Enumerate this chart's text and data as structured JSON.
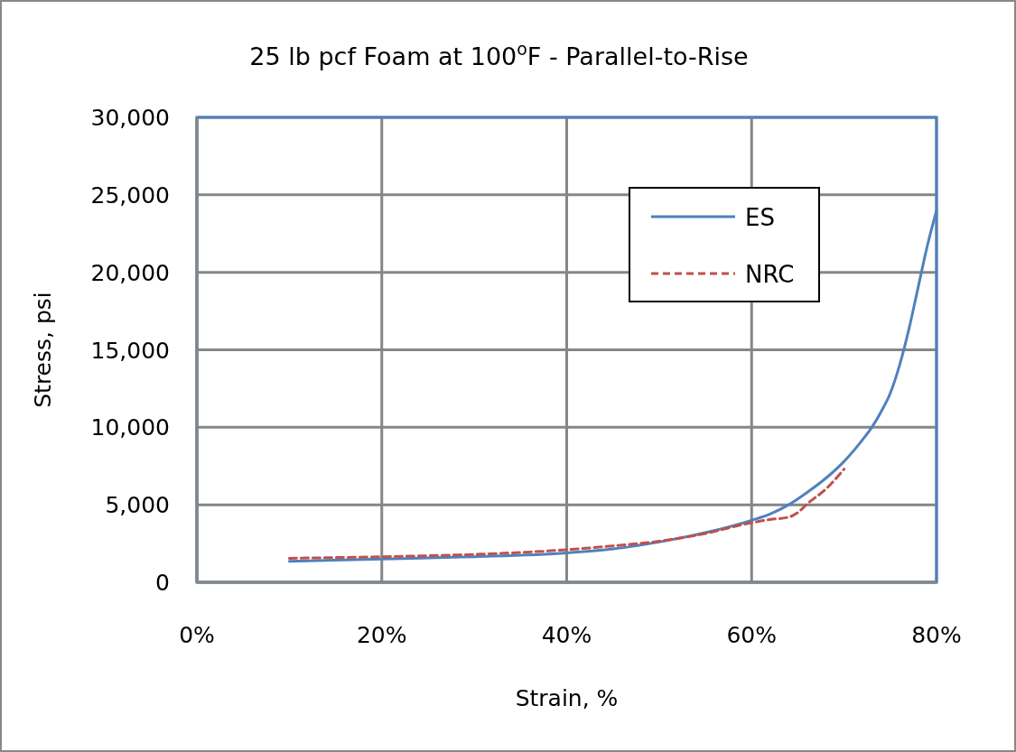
{
  "chart_data": {
    "type": "line",
    "title": "25 lb pcf Foam at 100$^{o}$F - Parallel-to-Rise",
    "xlabel": "Strain, %",
    "ylabel": "Stress, psi",
    "xlim": [
      0,
      80
    ],
    "xticks": [
      {
        "value": 0,
        "label": "0%"
      },
      {
        "value": 20,
        "label": "20%"
      },
      {
        "value": 40,
        "label": "40%"
      },
      {
        "value": 60,
        "label": "60%"
      },
      {
        "value": 80,
        "label": "80%"
      }
    ],
    "ylim": [
      0,
      30000
    ],
    "yticks": [
      {
        "value": 0,
        "label": "0"
      },
      {
        "value": 5000,
        "label": "5,000"
      },
      {
        "value": 10000,
        "label": "10,000"
      },
      {
        "value": 15000,
        "label": "15,000"
      },
      {
        "value": 20000,
        "label": "20,000"
      },
      {
        "value": 25000,
        "label": "25,000"
      },
      {
        "value": 30000,
        "label": "30,000"
      }
    ],
    "grid": true,
    "legend": "top right",
    "marker": "none",
    "series": [
      {
        "name": "ES",
        "color": "#4f81bd",
        "line_style": "solid",
        "x": [
          10,
          20,
          30,
          40,
          45,
          50,
          55,
          60,
          62,
          64,
          66,
          68,
          70,
          72,
          73,
          74,
          75,
          76,
          77,
          78,
          79,
          80
        ],
        "values": [
          1350,
          1500,
          1650,
          1900,
          2150,
          2600,
          3200,
          4000,
          4400,
          5000,
          5800,
          6700,
          7800,
          9200,
          10000,
          11000,
          12200,
          14000,
          16300,
          19000,
          21700,
          24000
        ]
      },
      {
        "name": "NRC",
        "color": "#c0504d",
        "line_style": "dashed",
        "x": [
          10,
          20,
          30,
          40,
          45,
          50,
          55,
          60,
          62,
          64,
          65,
          66,
          68,
          70
        ],
        "values": [
          1550,
          1650,
          1800,
          2100,
          2350,
          2650,
          3150,
          3850,
          4050,
          4200,
          4500,
          5050,
          6000,
          7300
        ]
      }
    ]
  }
}
